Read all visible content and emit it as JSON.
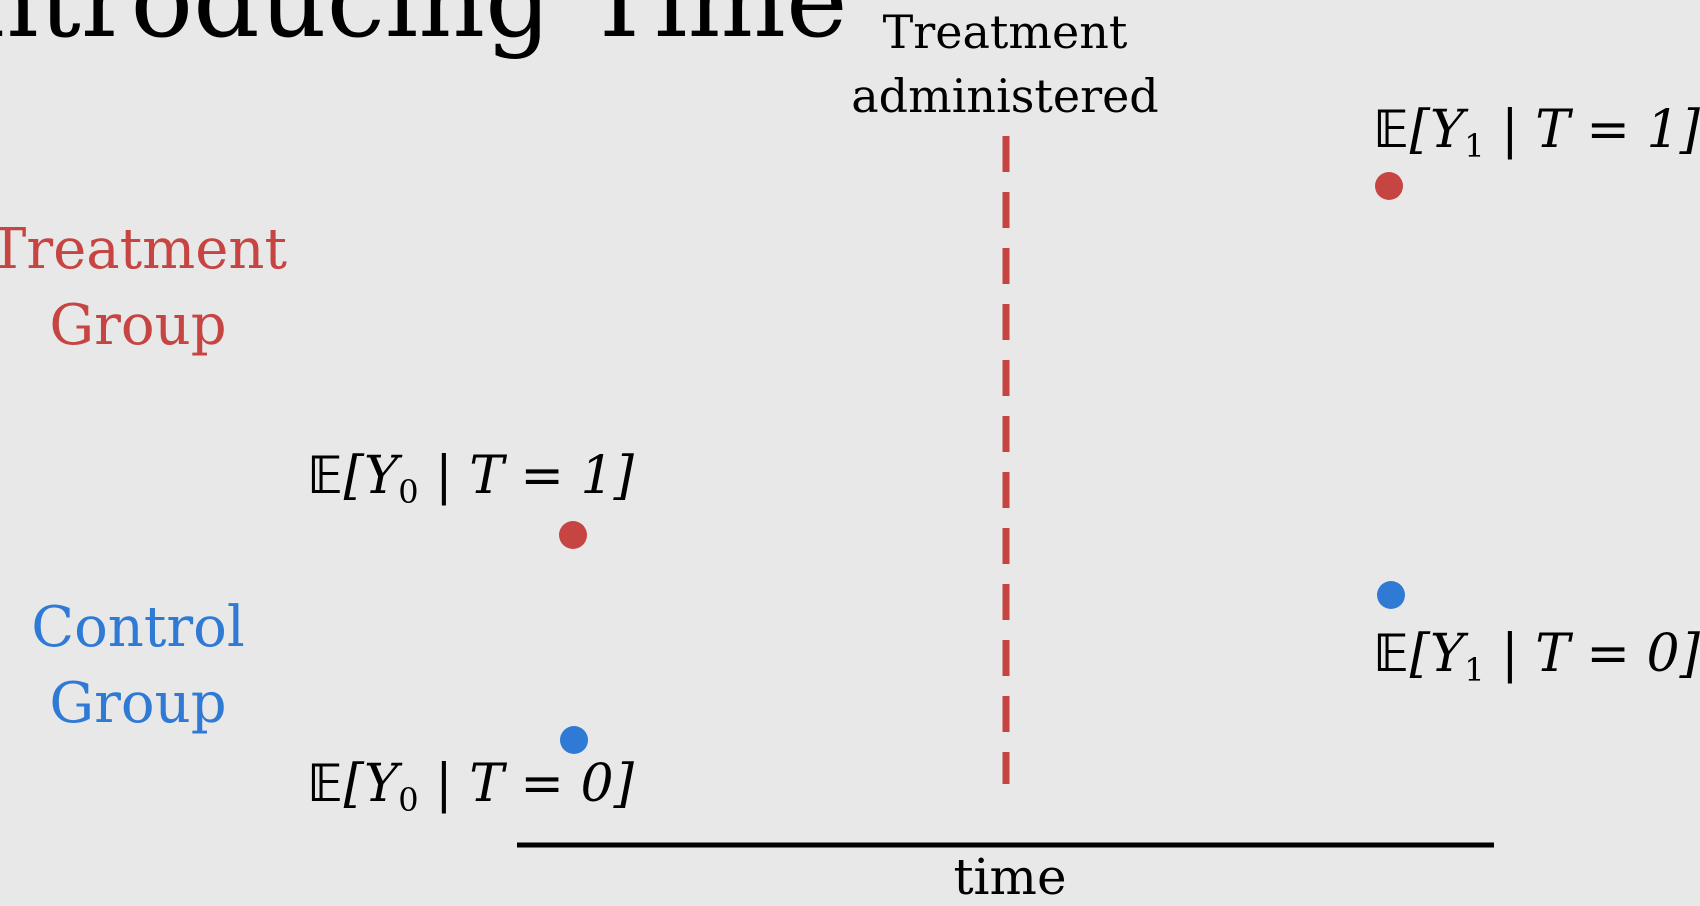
{
  "title": "ntroducing Time",
  "marker": {
    "line1": "Treatment",
    "line2": "administered",
    "color": "#c64441"
  },
  "groups": {
    "treatment": {
      "line1": "Treatment",
      "line2": "Group",
      "color": "#c64441"
    },
    "control": {
      "line1": "Control",
      "line2": "Group",
      "color": "#2f7ad5"
    }
  },
  "points": {
    "y1_t1": {
      "E": "𝔼",
      "open": "[",
      "Y": "Y",
      "sub": "1",
      "given": " | T = 1",
      "close": "]",
      "color": "#c64441"
    },
    "y1_t0": {
      "E": "𝔼",
      "open": "[",
      "Y": "Y",
      "sub": "1",
      "given": " | T = 0",
      "close": "]",
      "color": "#2f7ad5"
    },
    "y0_t1": {
      "E": "𝔼",
      "open": "[",
      "Y": "Y",
      "sub": "0",
      "given": " | T = 1",
      "close": "]",
      "color": "#c64441"
    },
    "y0_t0": {
      "E": "𝔼",
      "open": "[",
      "Y": "Y",
      "sub": "0",
      "given": " | T = 0",
      "close": "]",
      "color": "#2f7ad5"
    }
  },
  "axis": {
    "label": "time"
  }
}
